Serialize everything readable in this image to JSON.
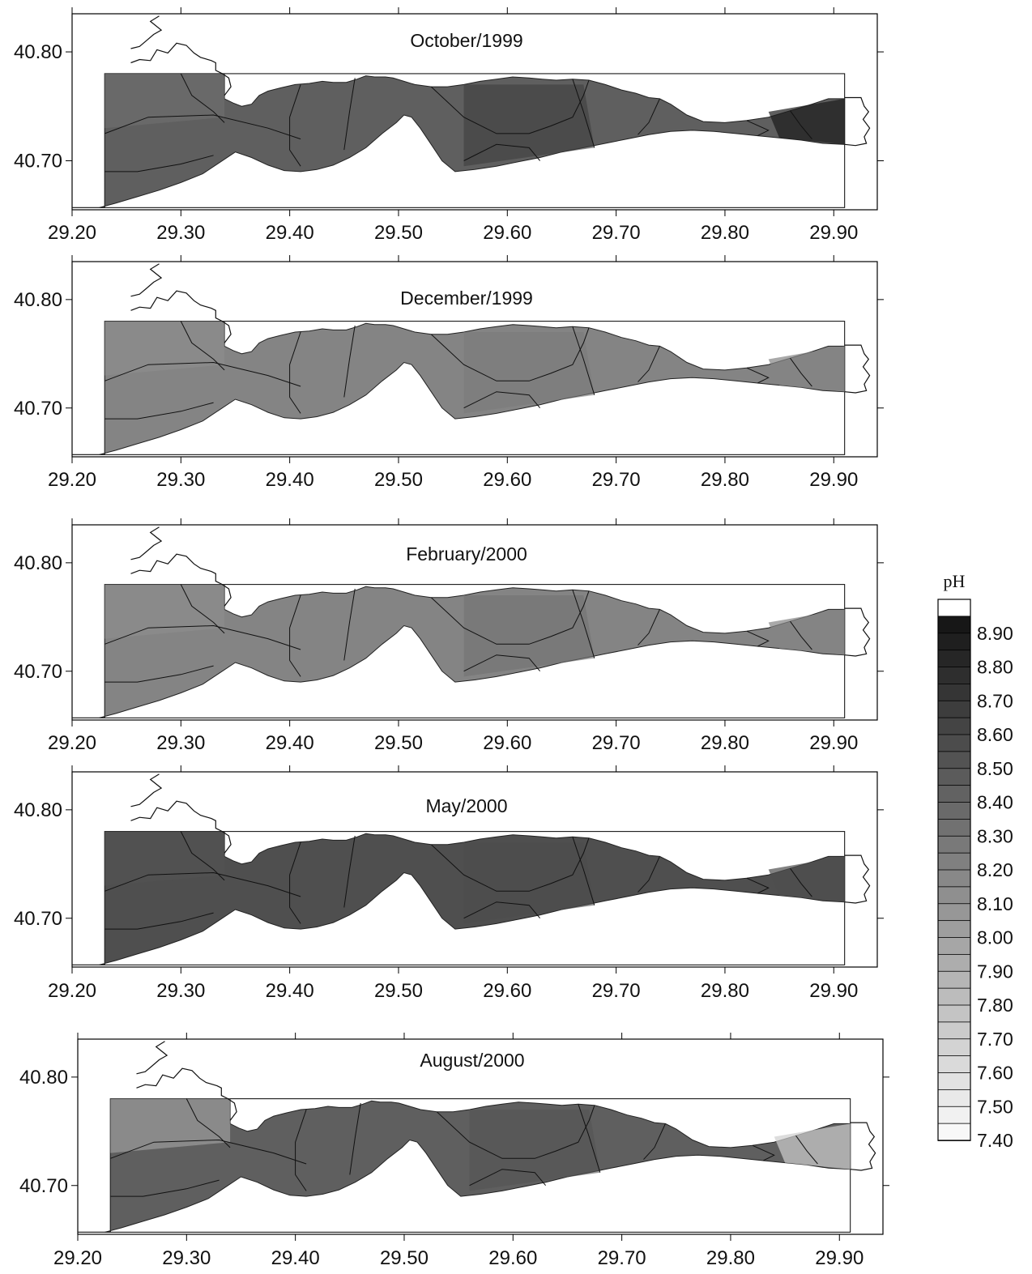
{
  "chart_data": {
    "type": "heatmap",
    "variable_label": "pH",
    "panels": [
      {
        "title": "October/1999",
        "xlim": [
          29.2,
          29.94
        ],
        "ylim": [
          40.655,
          40.835
        ],
        "yticks": [
          "40.70",
          "40.80"
        ],
        "xticks": [
          "29.20",
          "29.30",
          "29.40",
          "29.50",
          "29.60",
          "29.70",
          "29.80",
          "29.90"
        ],
        "grid": false,
        "tone": 8.45,
        "tone_range": [
          8.2,
          8.9
        ]
      },
      {
        "title": "December/1999",
        "xlim": [
          29.2,
          29.94
        ],
        "ylim": [
          40.655,
          40.835
        ],
        "yticks": [
          "40.70",
          "40.80"
        ],
        "xticks": [
          "29.20",
          "29.30",
          "29.40",
          "29.50",
          "29.60",
          "29.70",
          "29.80",
          "29.90"
        ],
        "grid": false,
        "tone": 8.2,
        "tone_range": [
          8.05,
          8.35
        ]
      },
      {
        "title": "February/2000",
        "xlim": [
          29.2,
          29.94
        ],
        "ylim": [
          40.655,
          40.835
        ],
        "yticks": [
          "40.70",
          "40.80"
        ],
        "xticks": [
          "29.20",
          "29.30",
          "29.40",
          "29.50",
          "29.60",
          "29.70",
          "29.80",
          "29.90"
        ],
        "grid": false,
        "tone": 8.2,
        "tone_range": [
          8.05,
          8.45
        ]
      },
      {
        "title": "May/2000",
        "xlim": [
          29.2,
          29.94
        ],
        "ylim": [
          40.655,
          40.835
        ],
        "yticks": [
          "40.70",
          "40.80"
        ],
        "xticks": [
          "29.20",
          "29.30",
          "29.40",
          "29.50",
          "29.60",
          "29.70",
          "29.80",
          "29.90"
        ],
        "grid": false,
        "tone": 8.55,
        "tone_range": [
          8.5,
          8.6
        ]
      },
      {
        "title": "August/2000",
        "xlim": [
          29.2,
          29.94
        ],
        "ylim": [
          40.655,
          40.835
        ],
        "yticks": [
          "40.70",
          "40.80"
        ],
        "xticks": [
          "29.20",
          "29.30",
          "29.40",
          "29.50",
          "29.60",
          "29.70",
          "29.80",
          "29.90"
        ],
        "grid": false,
        "tone": 8.45,
        "tone_range": [
          7.4,
          8.6
        ]
      }
    ],
    "colorbar": {
      "min": 7.4,
      "max": 9.0,
      "step": 0.05,
      "labels": [
        "8.90",
        "8.80",
        "8.70",
        "8.60",
        "8.50",
        "8.40",
        "8.30",
        "8.20",
        "8.10",
        "8.00",
        "7.90",
        "7.80",
        "7.70",
        "7.60",
        "7.50",
        "7.40"
      ]
    }
  }
}
